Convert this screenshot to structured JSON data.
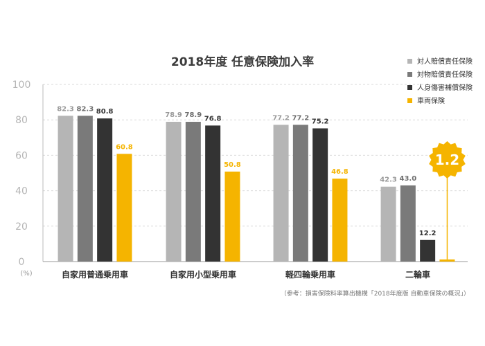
{
  "chart_data": {
    "type": "bar",
    "title": "2018年度 任意保険加入率",
    "unit_label": "(%)",
    "ylim": [
      0,
      100
    ],
    "yticks": [
      0,
      20,
      40,
      60,
      80,
      100
    ],
    "grid": true,
    "legend_position": "top-right",
    "categories": [
      "自家用普通乗用車",
      "自家用小型乗用車",
      "軽四輪乗用車",
      "二輪車"
    ],
    "series": [
      {
        "name": "対人賠償責任保険",
        "color": "#b5b5b5",
        "label_color": "#9a9a9a",
        "values": [
          82.3,
          78.9,
          77.2,
          42.3
        ]
      },
      {
        "name": "対物賠償責任保険",
        "color": "#7a7a7a",
        "label_color": "#6e6e6e",
        "values": [
          82.3,
          78.9,
          77.2,
          43.0
        ]
      },
      {
        "name": "人身傷害補償保険",
        "color": "#333333",
        "label_color": "#333333",
        "values": [
          80.8,
          76.8,
          75.2,
          12.2
        ]
      },
      {
        "name": "車両保険",
        "color": "#f5b400",
        "label_color": "#f5b400",
        "values": [
          60.8,
          50.8,
          46.8,
          1.2
        ]
      }
    ],
    "callout": {
      "text": "1.2",
      "category_index": 3,
      "series_index": 3,
      "color": "#f5b400"
    },
    "source": "（参考：損害保険料率算出機構「2018年度版 自動車保険の概況」）"
  }
}
